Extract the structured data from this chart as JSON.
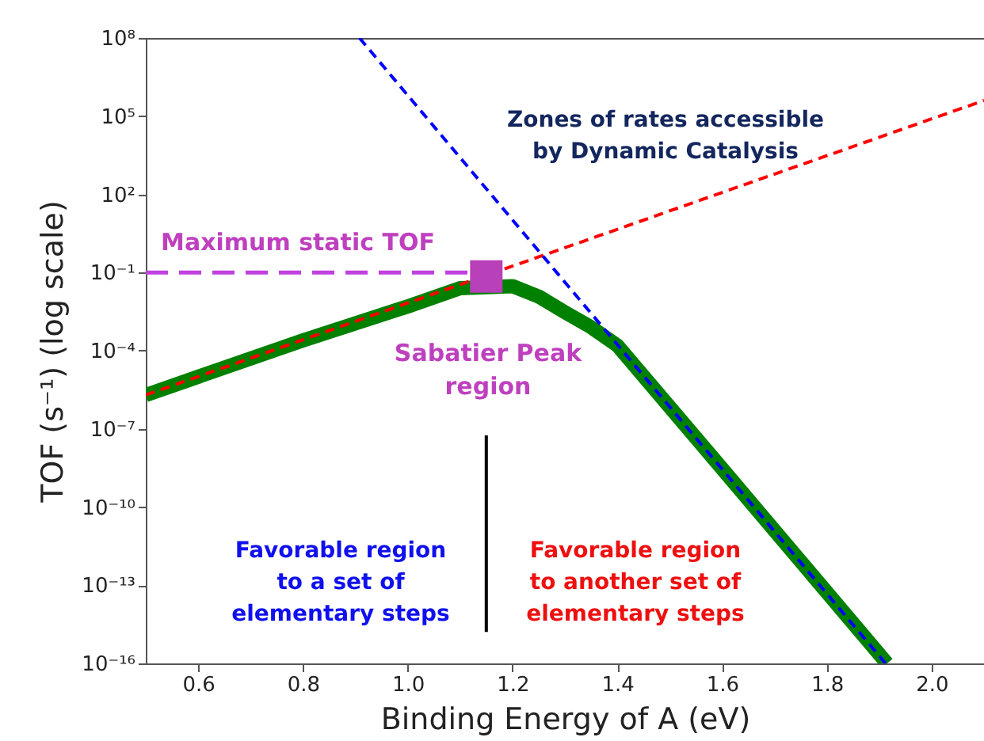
{
  "chart_data": {
    "type": "line",
    "xlabel": "Binding Energy of A (eV)",
    "ylabel": "TOF (s⁻¹) (log scale)",
    "log": "y",
    "grid": false,
    "xlim": [
      0.5,
      2.1
    ],
    "xticks": [
      0.6,
      0.8,
      {
        "value": 1,
        "label": "1.0"
      },
      1.2,
      1.4,
      1.6,
      1.8,
      {
        "value": 2,
        "label": "2.0"
      }
    ],
    "ylim": [
      1e-16,
      100000000.0
    ],
    "yticks": [
      {
        "value": 1e-16,
        "label": "10⁻¹⁶"
      },
      {
        "value": 1e-13,
        "label": "10⁻¹³"
      },
      {
        "value": 1e-10,
        "label": "10⁻¹⁰"
      },
      {
        "value": 1e-07,
        "label": "10⁻⁷"
      },
      {
        "value": 0.0001,
        "label": "10⁻⁴"
      },
      {
        "value": 0.1,
        "label": "10⁻¹"
      },
      {
        "value": 100,
        "label": "10²"
      },
      {
        "value": 100000,
        "label": "10⁵"
      },
      {
        "value": 100000000.0,
        "label": "10⁸"
      }
    ],
    "series": [
      {
        "color": "#008000",
        "line_style": "solid",
        "x": [
          0.5,
          0.8,
          1.0,
          1.1,
          1.2,
          1.25,
          1.3,
          1.35,
          1.4,
          1.6,
          1.915
        ],
        "values": [
          2e-06,
          0.00025,
          0.005,
          0.025,
          0.03,
          0.012,
          0.003,
          0.0008,
          0.00016,
          3e-09,
          1e-16
        ]
      },
      {
        "color": "#ff0000",
        "line_style": "dashed",
        "x": [
          0.5,
          2.1
        ],
        "values": [
          2e-06,
          400000.0
        ]
      },
      {
        "color": "#0000ff",
        "line_style": "dashed",
        "x": [
          0.908,
          1.912
        ],
        "values": [
          100000000.0,
          1e-16
        ]
      },
      {
        "color": "#c040e0",
        "line_style": "dashed",
        "x": [
          0.5,
          1.15
        ],
        "values": [
          0.1,
          0.1
        ]
      },
      {
        "type": "scatter",
        "color": "#b840b8",
        "marker": "square",
        "x": [
          1.15
        ],
        "values": [
          0.07
        ]
      },
      {
        "color": "#000000",
        "line_style": "solid",
        "x": [
          1.15,
          1.15
        ],
        "values": [
          1.6e-15,
          5.6e-08
        ]
      }
    ],
    "annotations": [
      "Zones of rates accessible\nby Dynamic Catalysis",
      "Maximum static TOF",
      "Sabatier Peak\nregion",
      "Favorable region\nto a set of\nelementary steps",
      "Favorable region\nto another set of\nelementary steps"
    ]
  }
}
